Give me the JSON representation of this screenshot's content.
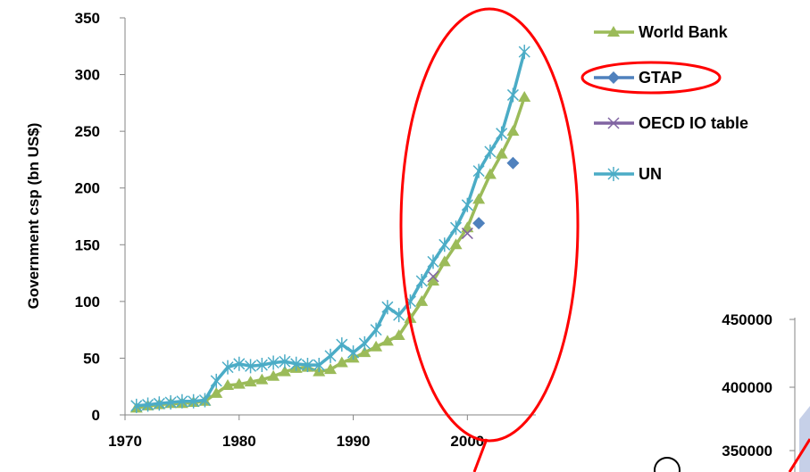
{
  "chart_data": [
    {
      "type": "line",
      "title": "",
      "xlabel": "",
      "ylabel": "Government csp (bn US$)",
      "xlim": [
        1970,
        2006
      ],
      "ylim": [
        0,
        350
      ],
      "x_ticks": [
        "1970",
        "1980",
        "1990",
        "2000"
      ],
      "y_ticks": [
        "0",
        "50",
        "100",
        "150",
        "200",
        "250",
        "300",
        "350"
      ],
      "grid": false,
      "legend_position": "right",
      "series": [
        {
          "name": "World Bank",
          "color": "#9bbb59",
          "marker": "triangle",
          "x": [
            1971,
            1972,
            1973,
            1974,
            1975,
            1976,
            1977,
            1978,
            1979,
            1980,
            1981,
            1982,
            1983,
            1984,
            1985,
            1986,
            1987,
            1988,
            1989,
            1990,
            1991,
            1992,
            1993,
            1994,
            1995,
            1996,
            1997,
            1998,
            1999,
            2000,
            2001,
            2002,
            2003,
            2004,
            2005
          ],
          "y": [
            6,
            8,
            9,
            10,
            10,
            11,
            12,
            19,
            26,
            27,
            29,
            31,
            34,
            38,
            41,
            42,
            38,
            40,
            46,
            50,
            55,
            60,
            65,
            70,
            85,
            100,
            118,
            135,
            150,
            165,
            190,
            212,
            230,
            250,
            280
          ]
        },
        {
          "name": "GTAP",
          "color": "#4f81bd",
          "marker": "diamond",
          "x": [
            2001,
            2004
          ],
          "y": [
            169,
            222
          ]
        },
        {
          "name": "OECD IO table",
          "color": "#8064a2",
          "marker": "x",
          "x": [
            1997,
            2000
          ],
          "y": [
            122,
            160
          ]
        },
        {
          "name": "UN",
          "color": "#4bacc6",
          "marker": "star",
          "x": [
            1971,
            1972,
            1973,
            1974,
            1975,
            1976,
            1977,
            1978,
            1979,
            1980,
            1981,
            1982,
            1983,
            1984,
            1985,
            1986,
            1987,
            1988,
            1989,
            1990,
            1991,
            1992,
            1993,
            1994,
            1995,
            1996,
            1997,
            1998,
            1999,
            2000,
            2001,
            2002,
            2003,
            2004,
            2005
          ],
          "y": [
            8,
            9,
            10,
            11,
            12,
            12,
            13,
            30,
            42,
            45,
            43,
            44,
            46,
            47,
            45,
            44,
            44,
            52,
            62,
            55,
            63,
            75,
            95,
            88,
            100,
            118,
            135,
            150,
            165,
            185,
            215,
            232,
            248,
            282,
            320
          ]
        }
      ]
    },
    {
      "type": "area",
      "title": "",
      "ylabel": "",
      "ylim": [
        350000,
        450000
      ],
      "y_ticks": [
        "350000",
        "400000",
        "450000"
      ],
      "partially_visible": true,
      "fill_color": "#c6d0e8",
      "line_color": "#ff0000"
    }
  ],
  "annotations": {
    "highlight_color": "#ff0000"
  }
}
